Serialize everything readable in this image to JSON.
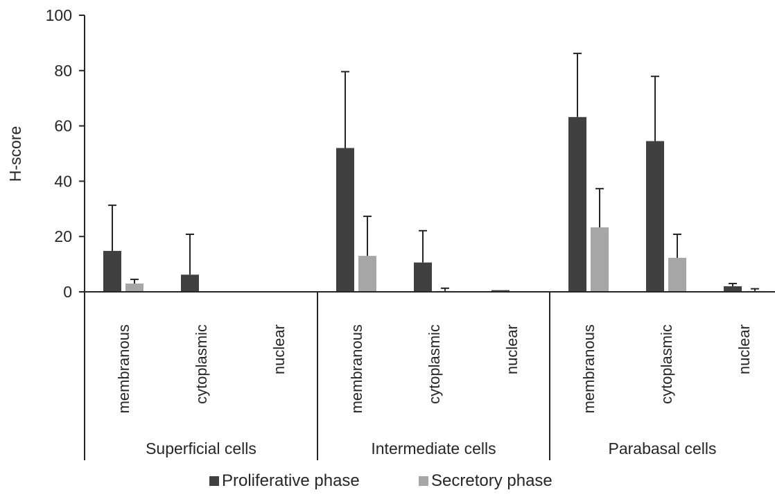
{
  "chart_data": {
    "type": "bar",
    "title": "",
    "xlabel": "",
    "ylabel": "H-score",
    "ylim": [
      0,
      100
    ],
    "yticks": [
      0,
      20,
      40,
      60,
      80,
      100
    ],
    "grid": false,
    "legend_position": "bottom",
    "groups": [
      {
        "label": "Superficial cells",
        "categories": [
          "membranous",
          "cytoplasmic",
          "nuclear"
        ]
      },
      {
        "label": "Intermediate cells",
        "categories": [
          "membranous",
          "cytoplasmic",
          "nuclear"
        ]
      },
      {
        "label": "Parabasal cells",
        "categories": [
          "membranous",
          "cytoplasmic",
          "nuclear"
        ]
      }
    ],
    "series": [
      {
        "name": "Proliferative phase",
        "color": "#404040",
        "values": [
          14.8,
          6.2,
          0.2,
          52.0,
          10.6,
          0.6,
          63.2,
          54.5,
          2.0
        ],
        "error": [
          16.5,
          14.6,
          0.0,
          27.6,
          11.5,
          0.0,
          23.0,
          23.4,
          1.0
        ]
      },
      {
        "name": "Secretory phase",
        "color": "#a6a6a6",
        "values": [
          3.0,
          0.0,
          0.0,
          13.0,
          0.3,
          0.0,
          23.3,
          12.3,
          0.3
        ],
        "error": [
          1.5,
          0.0,
          0.0,
          14.3,
          1.0,
          0.0,
          14.0,
          8.5,
          0.8
        ]
      }
    ]
  }
}
